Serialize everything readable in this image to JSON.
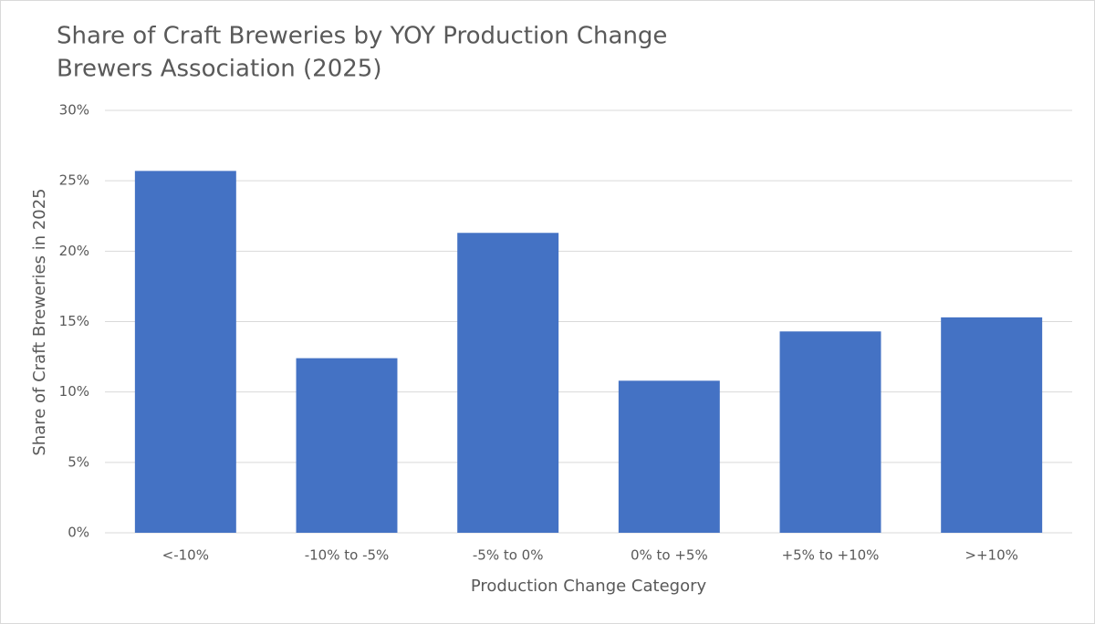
{
  "chart_data": {
    "type": "bar",
    "title": "Share of Craft Breweries by YOY Production Change",
    "subtitle": "Brewers Association (2025)",
    "x_label": "Production Change Category",
    "y_label": "Share of Craft Breweries in 2025",
    "categories": [
      "<-10%",
      "-10% to -5%",
      "-5% to 0%",
      "0% to +5%",
      "+5% to +10%",
      ">+10%"
    ],
    "values": [
      25.7,
      12.4,
      21.3,
      10.8,
      14.3,
      15.3
    ],
    "color": "#4472c4",
    "ylim": [
      0,
      30
    ],
    "yticks": [
      {
        "value": 0,
        "label": "0%"
      },
      {
        "value": 5,
        "label": "5%"
      },
      {
        "value": 10,
        "label": "10%"
      },
      {
        "value": 15,
        "label": "15%"
      },
      {
        "value": 20,
        "label": "20%"
      },
      {
        "value": 25,
        "label": "25%"
      },
      {
        "value": 30,
        "label": "30%"
      }
    ],
    "grid": true
  }
}
